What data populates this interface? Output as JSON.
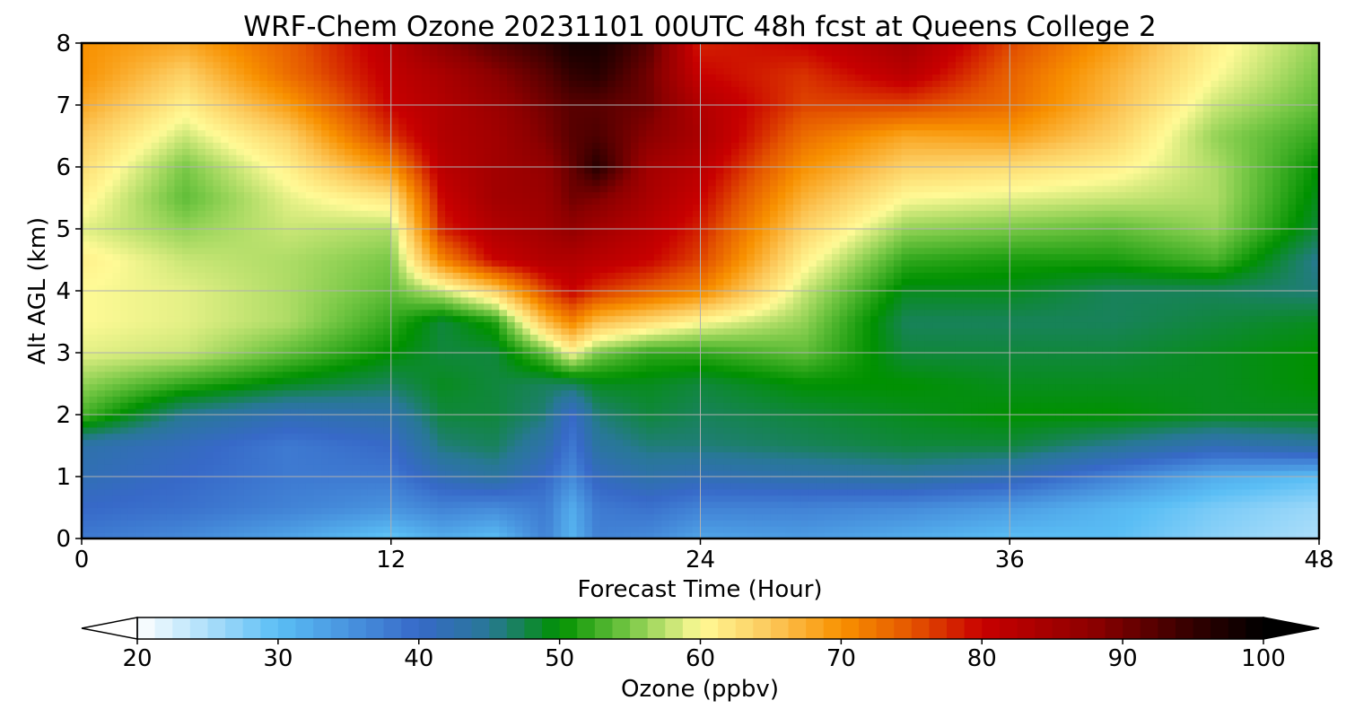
{
  "chart_data": {
    "type": "heatmap",
    "title": "WRF-Chem Ozone  20231101 00UTC 48h fcst at Queens College 2",
    "xlabel": "Forecast Time (Hour)",
    "ylabel": "Alt AGL (km)",
    "xlim": [
      0,
      48
    ],
    "ylim": [
      0,
      8
    ],
    "x_ticks": [
      "0",
      "12",
      "24",
      "36",
      "48"
    ],
    "y_ticks": [
      "0",
      "1",
      "2",
      "3",
      "4",
      "5",
      "6",
      "7",
      "8"
    ],
    "grid": true,
    "colorbar": {
      "label": "Ozone  (ppbv)",
      "range": [
        20,
        100
      ],
      "ticks": [
        "20",
        "30",
        "40",
        "50",
        "60",
        "70",
        "80",
        "90",
        "100"
      ],
      "extend": "both",
      "orientation": "horizontal",
      "placement": "bottom"
    },
    "x": [
      0,
      4,
      8,
      12,
      14,
      16,
      18,
      19,
      20,
      22,
      24,
      28,
      32,
      36,
      40,
      44,
      48
    ],
    "y": [
      0,
      0.5,
      1,
      1.5,
      2,
      2.5,
      3,
      3.5,
      4,
      4.5,
      5,
      5.5,
      6,
      6.5,
      7,
      7.5,
      8
    ],
    "z": [
      [
        38,
        36,
        33,
        29,
        32,
        30,
        37,
        31,
        37,
        36,
        33,
        34,
        32,
        30,
        30,
        27,
        25
      ],
      [
        40,
        39,
        37,
        35,
        37,
        36,
        38,
        32,
        38,
        39,
        37,
        37,
        36,
        34,
        31,
        28,
        26
      ],
      [
        42,
        40,
        38,
        38,
        42,
        44,
        40,
        36,
        41,
        43,
        42,
        43,
        44,
        42,
        37,
        32,
        30
      ],
      [
        43,
        41,
        38,
        40,
        46,
        47,
        43,
        38,
        44,
        46,
        46,
        47,
        48,
        48,
        45,
        42,
        44
      ],
      [
        53,
        45,
        42,
        43,
        48,
        48,
        46,
        40,
        46,
        48,
        47,
        48,
        49,
        50,
        50,
        49,
        49
      ],
      [
        56,
        52,
        49,
        47,
        49,
        48,
        47,
        47,
        49,
        49,
        48,
        50,
        50,
        49,
        49,
        49,
        50
      ],
      [
        59,
        58,
        54,
        50,
        48,
        48,
        54,
        60,
        55,
        52,
        52,
        54,
        48,
        48,
        48,
        49,
        50
      ],
      [
        60,
        59,
        57,
        52,
        48,
        51,
        66,
        71,
        66,
        63,
        60,
        56,
        47,
        47,
        47,
        48,
        49
      ],
      [
        60,
        59,
        57,
        54,
        58,
        64,
        76,
        80,
        77,
        74,
        71,
        58,
        49,
        49,
        47,
        47,
        46
      ],
      [
        61,
        58,
        57,
        55,
        71,
        80,
        83,
        83,
        82,
        80,
        76,
        61,
        52,
        51,
        51,
        53,
        45
      ],
      [
        59,
        56,
        58,
        57,
        78,
        83,
        85,
        87,
        85,
        82,
        78,
        64,
        56,
        55,
        54,
        56,
        48
      ],
      [
        61,
        54,
        59,
        62,
        80,
        85,
        86,
        90,
        89,
        84,
        80,
        67,
        60,
        59,
        58,
        57,
        49
      ],
      [
        63,
        55,
        61,
        70,
        82,
        85,
        87,
        91,
        96,
        85,
        82,
        70,
        64,
        63,
        61,
        57,
        50
      ],
      [
        65,
        58,
        64,
        77,
        83,
        85,
        89,
        92,
        93,
        88,
        84,
        73,
        68,
        69,
        64,
        56,
        52
      ],
      [
        68,
        61,
        69,
        80,
        83,
        86,
        90,
        92,
        92,
        90,
        83,
        76,
        76,
        73,
        66,
        58,
        54
      ],
      [
        70,
        64,
        73,
        81,
        84,
        88,
        92,
        95,
        96,
        90,
        80,
        77,
        82,
        74,
        67,
        60,
        55
      ],
      [
        70,
        68,
        74,
        82,
        88,
        92,
        95,
        98,
        98,
        92,
        78,
        80,
        85,
        76,
        69,
        61,
        56
      ]
    ]
  }
}
